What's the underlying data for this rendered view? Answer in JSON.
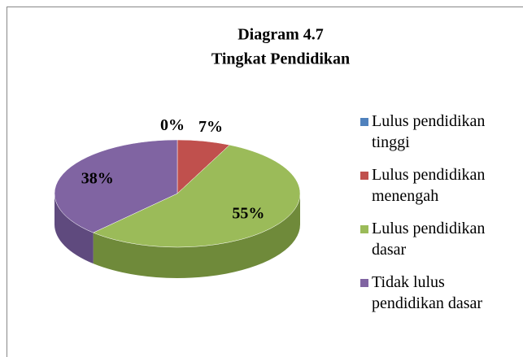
{
  "chart_data": {
    "type": "pie",
    "title": "Diagram 4.7",
    "subtitle": "Tingkat Pendidikan",
    "categories": [
      "Lulus pendidikan tinggi",
      "Lulus pendidikan menengah",
      "Lulus pendidikan dasar",
      "Tidak lulus pendidikan dasar"
    ],
    "values": [
      0,
      7,
      55,
      38
    ],
    "value_labels": [
      "0%",
      "7%",
      "55%",
      "38%"
    ],
    "colors": [
      "#4f81bd",
      "#c0504d",
      "#9bbb59",
      "#8064a2"
    ],
    "side_colors": [
      "#3a6291",
      "#943c39",
      "#6f8a3a",
      "#5f4a7e"
    ],
    "legend": "right"
  }
}
